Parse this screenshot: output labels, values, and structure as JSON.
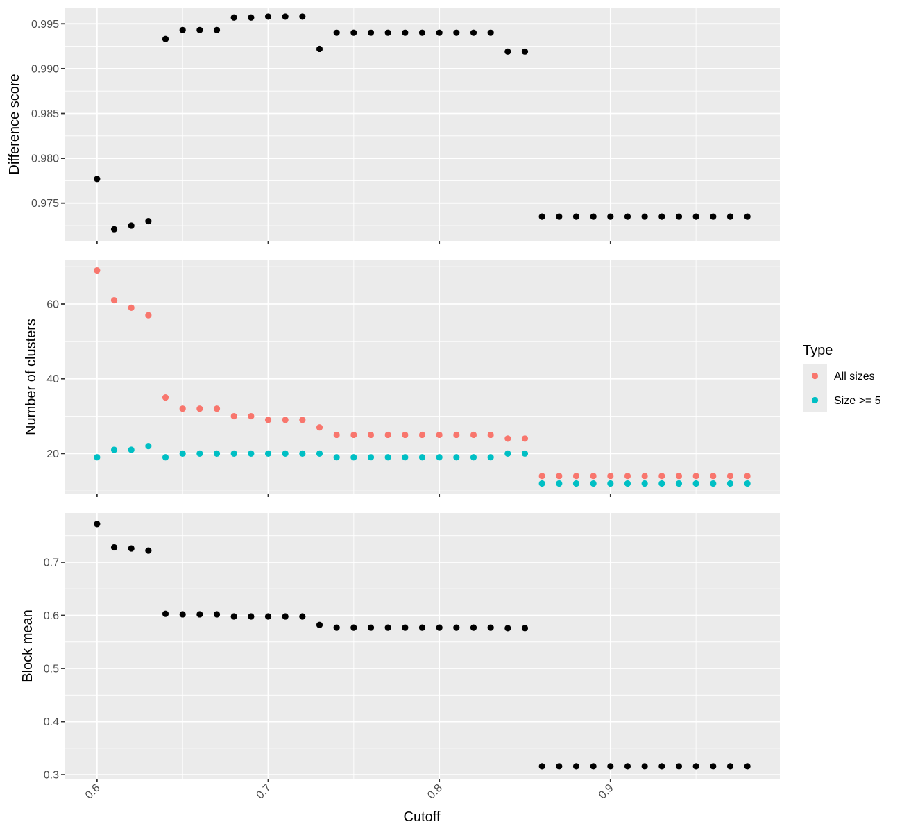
{
  "chart_data": {
    "type": "scatter",
    "xlabel": "Cutoff",
    "x": [
      0.6,
      0.61,
      0.62,
      0.63,
      0.64,
      0.65,
      0.66,
      0.67,
      0.68,
      0.69,
      0.7,
      0.71,
      0.72,
      0.73,
      0.74,
      0.75,
      0.76,
      0.77,
      0.78,
      0.79,
      0.8,
      0.81,
      0.82,
      0.83,
      0.84,
      0.85,
      0.86,
      0.87,
      0.88,
      0.89,
      0.9,
      0.91,
      0.92,
      0.93,
      0.94,
      0.95,
      0.96,
      0.97,
      0.98
    ],
    "xlim": [
      0.581,
      0.999
    ],
    "xticks": [
      0.6,
      0.7,
      0.8,
      0.9
    ],
    "xtick_labels": [
      "0.6",
      "0.7",
      "0.8",
      "0.9"
    ],
    "grid": true,
    "legend": {
      "title": "Type",
      "position": "right",
      "entries": [
        {
          "label": "All sizes",
          "color": "#F8766D"
        },
        {
          "label": "Size >= 5",
          "color": "#00BFC4"
        }
      ]
    },
    "panels": [
      {
        "ylabel": "Difference score",
        "ylim": [
          0.9708,
          0.9968
        ],
        "yticks": [
          0.975,
          0.98,
          0.985,
          0.99,
          0.995
        ],
        "ytick_labels": [
          "0.975",
          "0.980",
          "0.985",
          "0.990",
          "0.995"
        ],
        "series": [
          {
            "color": "#000000",
            "values": [
              0.9777,
              0.9721,
              0.9725,
              0.973,
              0.9933,
              0.9943,
              0.9943,
              0.9943,
              0.9957,
              0.9957,
              0.9958,
              0.9958,
              0.9958,
              0.9922,
              0.994,
              0.994,
              0.994,
              0.994,
              0.994,
              0.994,
              0.994,
              0.994,
              0.994,
              0.994,
              0.9919,
              0.9919,
              0.9735,
              0.9735,
              0.9735,
              0.9735,
              0.9735,
              0.9735,
              0.9735,
              0.9735,
              0.9735,
              0.9735,
              0.9735,
              0.9735,
              0.9735
            ]
          }
        ]
      },
      {
        "ylabel": "Number of clusters",
        "ylim": [
          9.3,
          71.7
        ],
        "yticks": [
          20,
          40,
          60
        ],
        "ytick_labels": [
          "20",
          "40",
          "60"
        ],
        "series": [
          {
            "name": "All sizes",
            "color": "#F8766D",
            "values": [
              69,
              61,
              59,
              57,
              35,
              32,
              32,
              32,
              30,
              30,
              29,
              29,
              29,
              27,
              25,
              25,
              25,
              25,
              25,
              25,
              25,
              25,
              25,
              25,
              24,
              24,
              14,
              14,
              14,
              14,
              14,
              14,
              14,
              14,
              14,
              14,
              14,
              14,
              14
            ]
          },
          {
            "name": "Size >= 5",
            "color": "#00BFC4",
            "values": [
              19,
              21,
              21,
              22,
              19,
              20,
              20,
              20,
              20,
              20,
              20,
              20,
              20,
              20,
              19,
              19,
              19,
              19,
              19,
              19,
              19,
              19,
              19,
              19,
              20,
              20,
              12,
              12,
              12,
              12,
              12,
              12,
              12,
              12,
              12,
              12,
              12,
              12,
              12
            ]
          }
        ]
      },
      {
        "ylabel": "Block mean",
        "ylim": [
          0.2923,
          0.7927
        ],
        "yticks": [
          0.3,
          0.4,
          0.5,
          0.6,
          0.7
        ],
        "ytick_labels": [
          "0.3",
          "0.4",
          "0.5",
          "0.6",
          "0.7"
        ],
        "series": [
          {
            "color": "#000000",
            "values": [
              0.772,
              0.728,
              0.726,
              0.722,
              0.603,
              0.602,
              0.602,
              0.602,
              0.598,
              0.598,
              0.598,
              0.598,
              0.598,
              0.582,
              0.577,
              0.577,
              0.577,
              0.577,
              0.577,
              0.577,
              0.577,
              0.577,
              0.577,
              0.577,
              0.576,
              0.576,
              0.316,
              0.316,
              0.316,
              0.316,
              0.316,
              0.316,
              0.316,
              0.316,
              0.316,
              0.316,
              0.316,
              0.316,
              0.316
            ]
          }
        ]
      }
    ]
  }
}
